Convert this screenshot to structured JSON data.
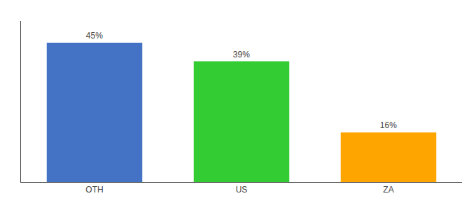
{
  "chart_data": {
    "type": "bar",
    "categories": [
      "OTH",
      "US",
      "ZA"
    ],
    "values": [
      45,
      39,
      16
    ],
    "value_labels": [
      "45%",
      "39%",
      "16%"
    ],
    "colors": [
      "#4472C4",
      "#33CC33",
      "#FFA500"
    ],
    "ylim": [
      0,
      52
    ],
    "grid": false,
    "data_labels": true,
    "tick_labels": "x"
  }
}
